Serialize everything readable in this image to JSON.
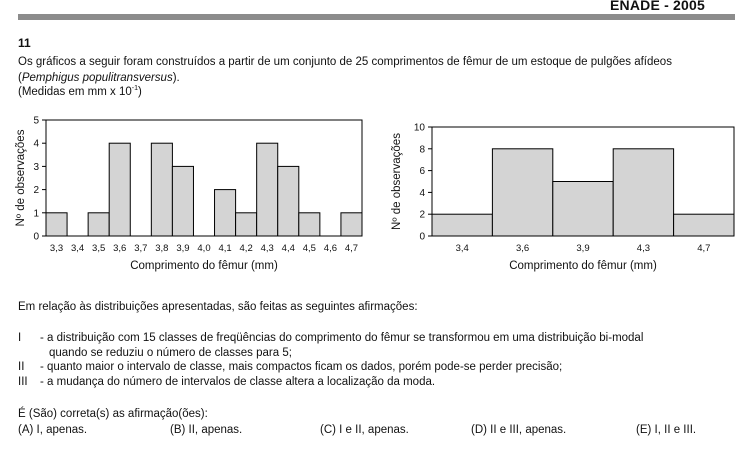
{
  "header": {
    "title": "ENADE - 2005"
  },
  "question": {
    "number": "11",
    "intro_line1": "Os gráficos a seguir foram construídos a partir de um conjunto de 25 comprimentos de fêmur de um estoque de pulgões afídeos",
    "species_open": "(",
    "species": "Pemphigus populitransversus",
    "species_close": ").",
    "measure_prefix": "(Medidas em mm x 10",
    "measure_exp": "-1",
    "measure_suffix": ")"
  },
  "chart_data": [
    {
      "type": "bar",
      "categories": [
        "3,3",
        "3,4",
        "3,5",
        "3,6",
        "3,7",
        "3,8",
        "3,9",
        "4,0",
        "4,1",
        "4,2",
        "4,3",
        "4,4",
        "4,5",
        "4,6",
        "4,7"
      ],
      "values": [
        1,
        0,
        1,
        4,
        0,
        4,
        3,
        0,
        2,
        1,
        4,
        3,
        1,
        0,
        1
      ],
      "xlabel": "Comprimento do fêmur (mm)",
      "ylabel": "Nº de observações",
      "ylim": [
        0,
        5
      ],
      "yticks": [
        "0",
        "1",
        "2",
        "3",
        "4",
        "5"
      ],
      "grid": false
    },
    {
      "type": "bar",
      "categories": [
        "3,4",
        "3,6",
        "3,9",
        "4,3",
        "4,7"
      ],
      "values": [
        2,
        8,
        5,
        8,
        2
      ],
      "xlabel": "Comprimento do fêmur (mm)",
      "ylabel": "Nº de observações",
      "ylim": [
        0,
        10
      ],
      "yticks": [
        "0",
        "2",
        "4",
        "6",
        "8",
        "10"
      ],
      "grid": false
    }
  ],
  "lead": "Em relação às distribuições apresentadas, são feitas as seguintes afirmações:",
  "statements": [
    {
      "numeral": "I",
      "line1": "- a distribuição com 15 classes de freqüências do comprimento do fêmur se transformou em uma distribuição bi-modal",
      "line2": "quando se reduziu o número de classes para 5;"
    },
    {
      "numeral": "II",
      "line1": "- quanto maior o intervalo de classe, mais compactos ficam os dados, porém pode-se perder precisão;"
    },
    {
      "numeral": "III",
      "line1": "- a mudança do número de intervalos de classe altera a localização da moda."
    }
  ],
  "ask": "É (São) correta(s) as afirmação(ões):",
  "options": [
    {
      "letter": "(A)",
      "text": "I, apenas."
    },
    {
      "letter": "(B)",
      "text": "II, apenas."
    },
    {
      "letter": "(C)",
      "text": "I e II, apenas."
    },
    {
      "letter": "(D)",
      "text": "II e III, apenas."
    },
    {
      "letter": "(E)",
      "text": "I, II e III."
    }
  ],
  "colors": {
    "bar_fill": "#d4d4d4",
    "rule": "#8c8c8c"
  }
}
